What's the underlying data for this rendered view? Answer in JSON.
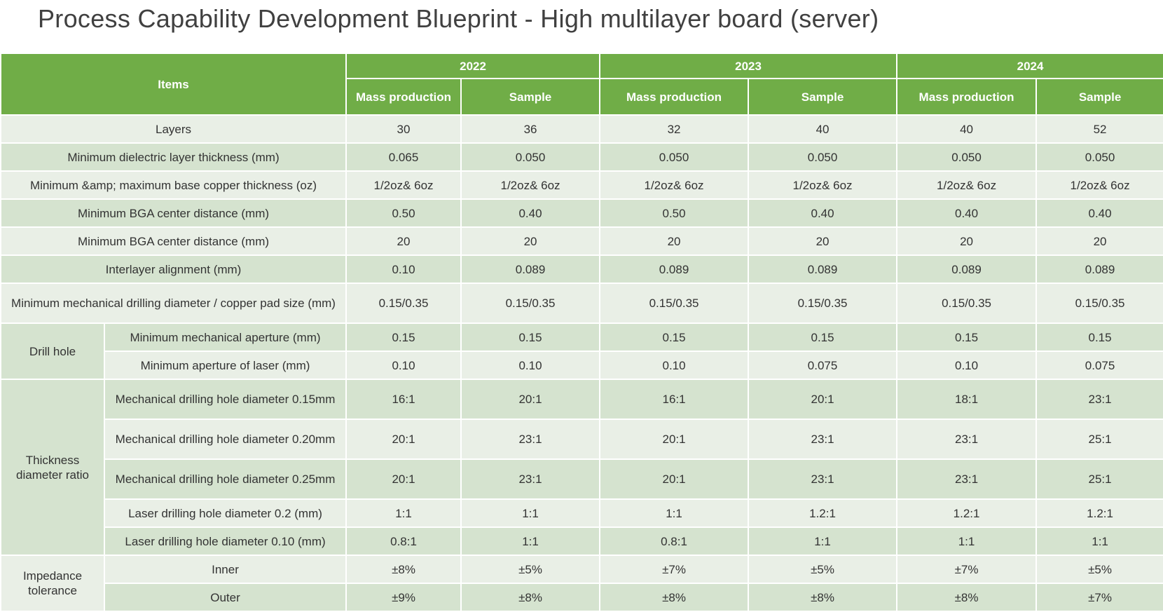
{
  "title": "Process Capability Development Blueprint - High multilayer board (server)",
  "header": {
    "items_label": "Items",
    "years": [
      "2022",
      "2023",
      "2024"
    ],
    "subheaders": [
      "Mass production",
      "Sample",
      "Mass production",
      "Sample",
      "Mass production",
      "Sample"
    ]
  },
  "groups": {
    "drill_hole": "Drill hole",
    "thickness_ratio": "Thickness diameter ratio",
    "impedance": "Impedance tolerance"
  },
  "rows": [
    {
      "label": "Layers",
      "values": [
        "30",
        "36",
        "32",
        "40",
        "40",
        "52"
      ]
    },
    {
      "label": "Minimum  dielectric layer thickness (mm)",
      "values": [
        "0.065",
        "0.050",
        "0.050",
        "0.050",
        "0.050",
        "0.050"
      ]
    },
    {
      "label": "Minimum  &amp; maximum  base copper thickness (oz)",
      "values": [
        "1/2oz& 6oz",
        "1/2oz& 6oz",
        "1/2oz& 6oz",
        "1/2oz& 6oz",
        "1/2oz& 6oz",
        "1/2oz& 6oz"
      ]
    },
    {
      "label": "Minimum  BGA center distance (mm)",
      "values": [
        "0.50",
        "0.40",
        "0.50",
        "0.40",
        "0.40",
        "0.40"
      ]
    },
    {
      "label": "Minimum  BGA center distance (mm)",
      "values": [
        "20",
        "20",
        "20",
        "20",
        "20",
        "20"
      ]
    },
    {
      "label": "Interlayer alignment (mm)",
      "values": [
        "0.10",
        "0.089",
        "0.089",
        "0.089",
        "0.089",
        "0.089"
      ]
    },
    {
      "label": "Minimum  mechanical drilling diameter  / copper pad size (mm)",
      "values": [
        "0.15/0.35",
        "0.15/0.35",
        "0.15/0.35",
        "0.15/0.35",
        "0.15/0.35",
        "0.15/0.35"
      ]
    },
    {
      "label": "Minimum  mechanical aperture (mm)",
      "values": [
        "0.15",
        "0.15",
        "0.15",
        "0.15",
        "0.15",
        "0.15"
      ]
    },
    {
      "label": "Minimum  aperture of laser (mm)",
      "values": [
        "0.10",
        "0.10",
        "0.10",
        "0.075",
        "0.10",
        "0.075"
      ]
    },
    {
      "label": "Mechanical drilling hole diameter 0.15mm",
      "values": [
        "16:1",
        "20:1",
        "16:1",
        "20:1",
        "18:1",
        "23:1"
      ]
    },
    {
      "label": "Mechanical drilling hole diameter 0.20mm",
      "values": [
        "20:1",
        "23:1",
        "20:1",
        "23:1",
        "23:1",
        "25:1"
      ]
    },
    {
      "label": "Mechanical drilling hole diameter 0.25mm",
      "values": [
        "20:1",
        "23:1",
        "20:1",
        "23:1",
        "23:1",
        "25:1"
      ]
    },
    {
      "label": "Laser drilling hole diameter 0.2  (mm)",
      "values": [
        "1:1",
        "1:1",
        "1:1",
        "1.2:1",
        "1.2:1",
        "1.2:1"
      ]
    },
    {
      "label": "Laser drilling hole diameter 0.10  (mm)",
      "values": [
        "0.8:1",
        "1:1",
        "0.8:1",
        "1:1",
        "1:1",
        "1:1"
      ]
    },
    {
      "label": "Inner",
      "values": [
        "±8%",
        "±5%",
        "±7%",
        "±5%",
        "±7%",
        "±5%"
      ]
    },
    {
      "label": "Outer",
      "values": [
        "±9%",
        "±8%",
        "±8%",
        "±8%",
        "±8%",
        "±7%"
      ]
    }
  ]
}
